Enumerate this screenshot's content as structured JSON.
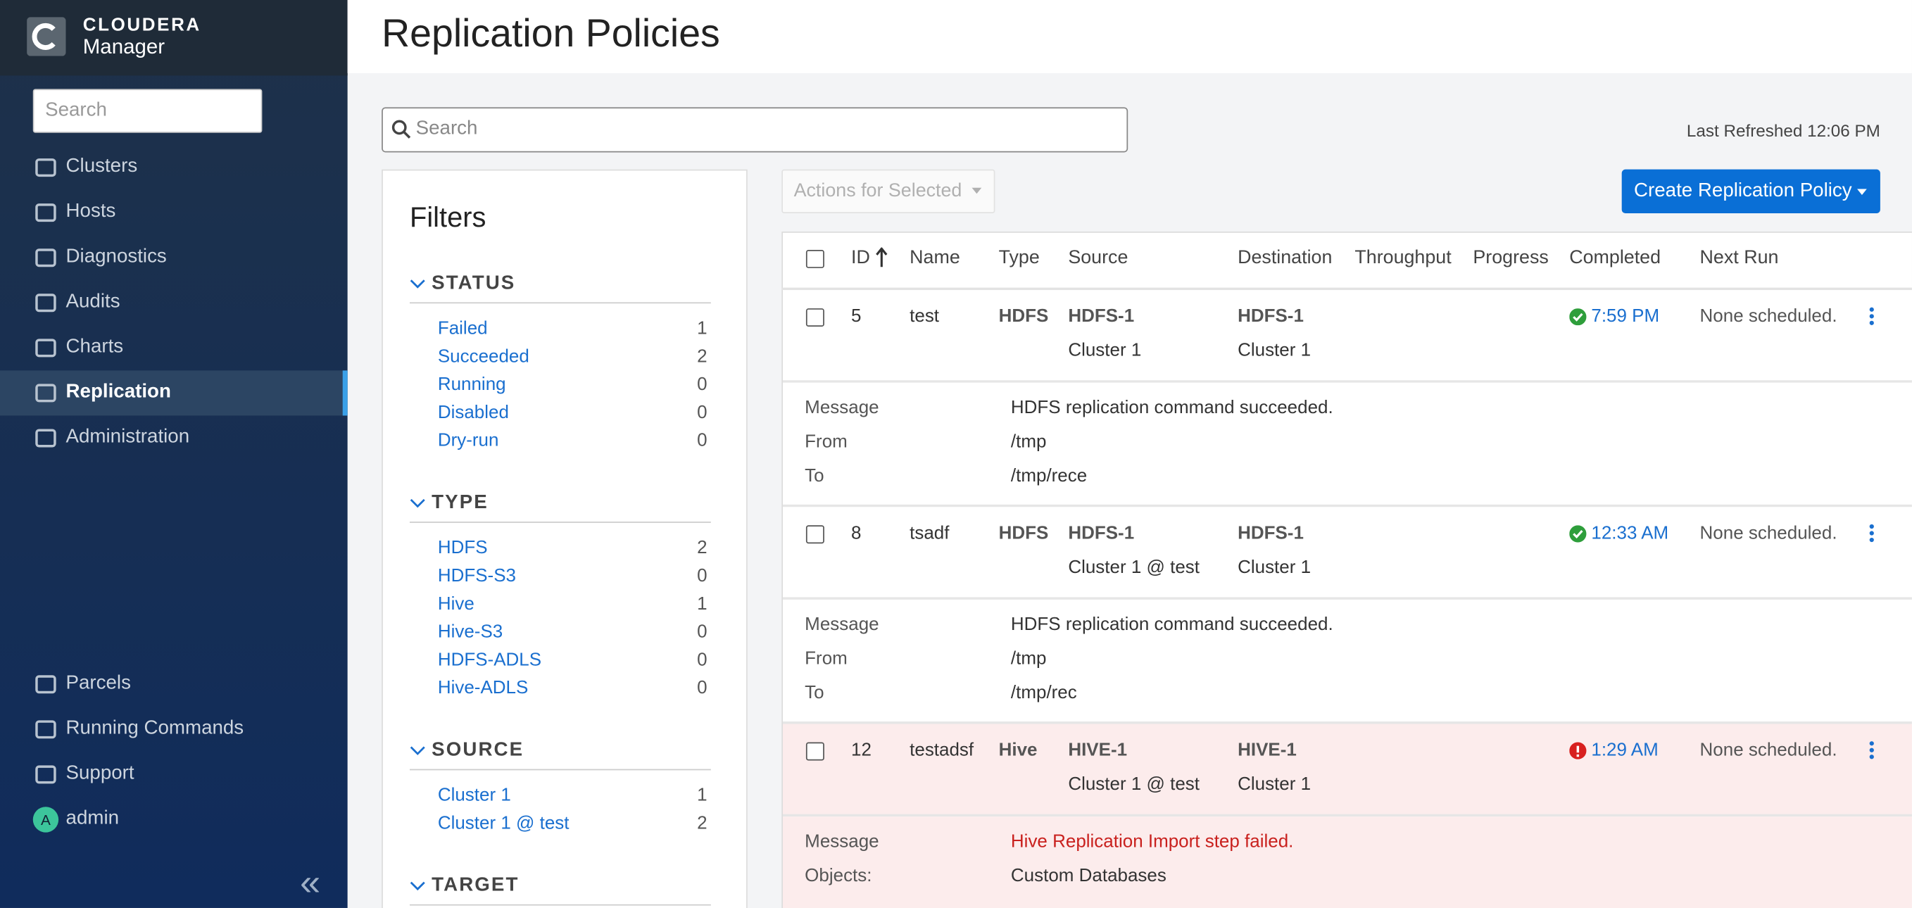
{
  "sidebar": {
    "brand": "CLOUDERA",
    "product": "Manager",
    "search_placeholder": "Search",
    "nav": [
      "Clusters",
      "Hosts",
      "Diagnostics",
      "Audits",
      "Charts",
      "Replication",
      "Administration"
    ],
    "active": "Replication",
    "bottom_nav": [
      "Parcels",
      "Running Commands",
      "Support"
    ],
    "user_initial": "A",
    "user": "admin",
    "collapse": "«"
  },
  "header": {
    "title": "Replication Policies"
  },
  "toolbar": {
    "search_placeholder": "Search",
    "last_refreshed": "Last Refreshed 12:06 PM",
    "actions": "Actions for Selected",
    "create": "Create Replication Policy"
  },
  "filters": {
    "title": "Filters",
    "groups": [
      {
        "name": "STATUS",
        "items": [
          {
            "label": "Failed",
            "count": 1
          },
          {
            "label": "Succeeded",
            "count": 2
          },
          {
            "label": "Running",
            "count": 0
          },
          {
            "label": "Disabled",
            "count": 0
          },
          {
            "label": "Dry-run",
            "count": 0
          }
        ]
      },
      {
        "name": "TYPE",
        "items": [
          {
            "label": "HDFS",
            "count": 2
          },
          {
            "label": "HDFS-S3",
            "count": 0
          },
          {
            "label": "Hive",
            "count": 1
          },
          {
            "label": "Hive-S3",
            "count": 0
          },
          {
            "label": "HDFS-ADLS",
            "count": 0
          },
          {
            "label": "Hive-ADLS",
            "count": 0
          }
        ]
      },
      {
        "name": "SOURCE",
        "items": [
          {
            "label": "Cluster 1",
            "count": 1
          },
          {
            "label": "Cluster 1 @ test",
            "count": 2
          }
        ]
      },
      {
        "name": "TARGET",
        "items": []
      }
    ]
  },
  "table": {
    "columns": [
      "ID",
      "Name",
      "Type",
      "Source",
      "Destination",
      "Throughput",
      "Progress",
      "Completed",
      "Next Run"
    ],
    "rows": [
      {
        "id": 5,
        "name": "test",
        "type": "HDFS",
        "source": [
          "HDFS-1",
          "Cluster 1"
        ],
        "destination": [
          "HDFS-1",
          "Cluster 1"
        ],
        "completed": "7:59 PM",
        "status_icon": "success",
        "next_run": "None scheduled.",
        "details": [
          {
            "label": "Message",
            "value": "HDFS replication command succeeded."
          },
          {
            "label": "From",
            "value": "/tmp"
          },
          {
            "label": "To",
            "value": "/tmp/rece"
          }
        ]
      },
      {
        "id": 8,
        "name": "tsadf",
        "type": "HDFS",
        "source": [
          "HDFS-1",
          "Cluster 1 @ test"
        ],
        "destination": [
          "HDFS-1",
          "Cluster 1"
        ],
        "completed": "12:33 AM",
        "status_icon": "success",
        "next_run": "None scheduled.",
        "details": [
          {
            "label": "Message",
            "value": "HDFS replication command succeeded."
          },
          {
            "label": "From",
            "value": "/tmp"
          },
          {
            "label": "To",
            "value": "/tmp/rec"
          }
        ]
      },
      {
        "id": 12,
        "name": "testadsf",
        "type": "Hive",
        "source": [
          "HIVE-1",
          "Cluster 1 @ test"
        ],
        "destination": [
          "HIVE-1",
          "Cluster 1"
        ],
        "completed": "1:29 AM",
        "status_icon": "error",
        "next_run": "None scheduled.",
        "details": [
          {
            "label": "Message",
            "value": "Hive Replication Import step failed."
          },
          {
            "label": "Objects:",
            "value": "Custom Databases"
          }
        ]
      }
    ]
  }
}
